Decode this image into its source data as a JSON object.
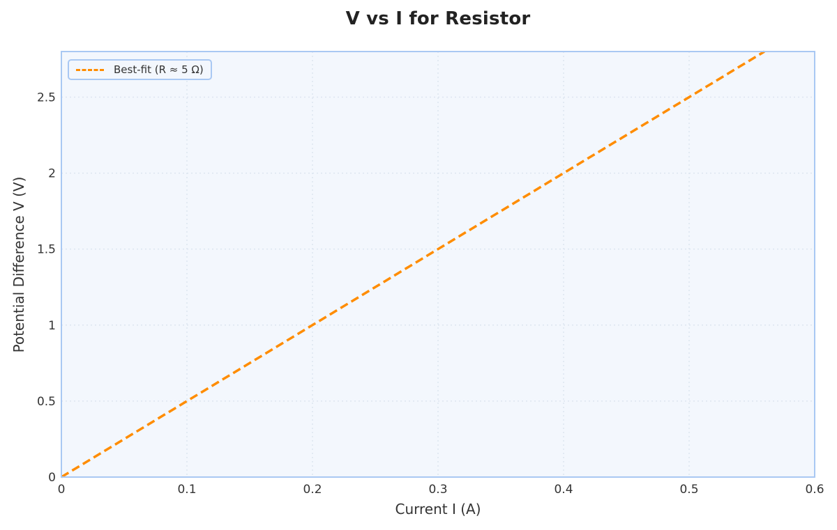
{
  "chart_data": {
    "type": "line",
    "title": "V vs I for Resistor",
    "xlabel": "Current I (A)",
    "ylabel": "Potential Difference V (V)",
    "xlim": [
      0,
      0.6
    ],
    "ylim": [
      0,
      2.8
    ],
    "xticks": [
      "0",
      "0.1",
      "0.2",
      "0.3",
      "0.4",
      "0.5",
      "0.6"
    ],
    "yticks": [
      "0",
      "0.5",
      "1",
      "1.5",
      "2",
      "2.5"
    ],
    "grid": true,
    "legend_position": "upper left",
    "series": [
      {
        "name": "Best-fit (R ≈ 5 Ω)",
        "style": "dashed",
        "color": "#ff8c00",
        "x": [
          0,
          0.56
        ],
        "y": [
          0,
          2.8
        ]
      }
    ]
  },
  "colors": {
    "plot_background": "#f3f7fd",
    "plot_border": "#a9c8f3",
    "line": "#ff8c00",
    "grid": "#dde5f0"
  }
}
